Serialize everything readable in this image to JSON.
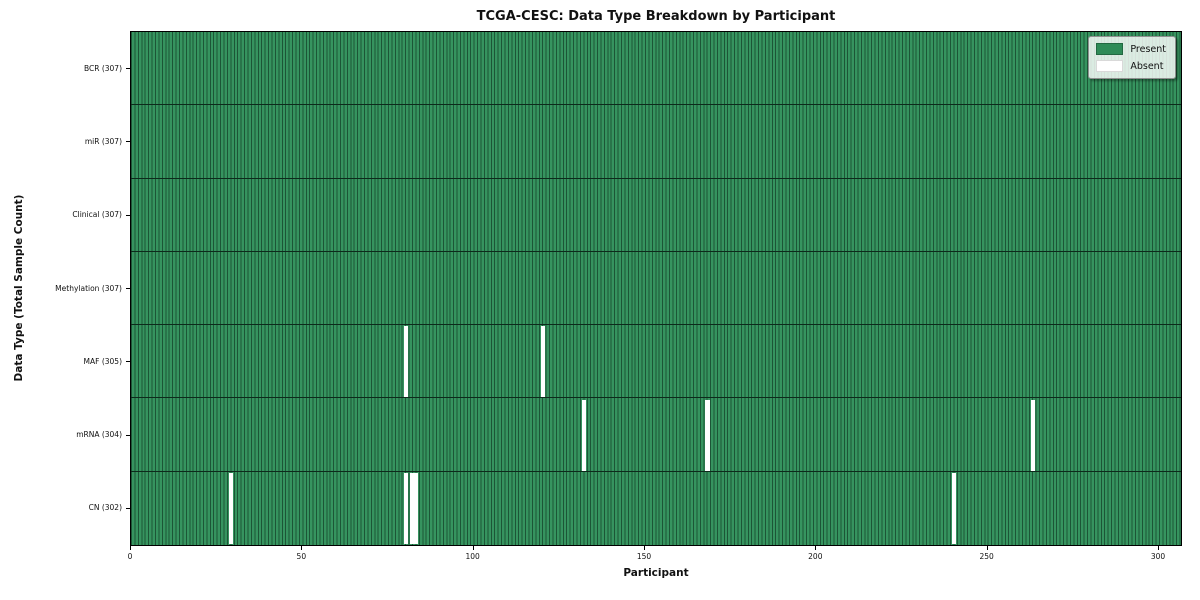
{
  "chart_data": {
    "type": "heatmap",
    "title": "TCGA-CESC: Data Type Breakdown by Participant",
    "xlabel": "Participant",
    "ylabel": "Data Type (Total Sample Count)",
    "x_ticks": [
      0,
      50,
      100,
      150,
      200,
      250,
      300
    ],
    "x_max": 307,
    "n_participants": 307,
    "grid": false,
    "legend_position": "upper right",
    "legend": [
      {
        "label": "Present",
        "color": "#2e8b57"
      },
      {
        "label": "Absent",
        "color": "#ffffff"
      }
    ],
    "rows": [
      {
        "label": "BCR",
        "total": 307,
        "display": "BCR (307)",
        "absent_participants": []
      },
      {
        "label": "miR",
        "total": 307,
        "display": "miR (307)",
        "absent_participants": []
      },
      {
        "label": "Clinical",
        "total": 307,
        "display": "Clinical (307)",
        "absent_participants": []
      },
      {
        "label": "Methylation",
        "total": 307,
        "display": "Methylation (307)",
        "absent_participants": []
      },
      {
        "label": "MAF",
        "total": 305,
        "display": "MAF (305)",
        "absent_participants": [
          80,
          120
        ]
      },
      {
        "label": "mRNA",
        "total": 304,
        "display": "mRNA (304)",
        "absent_participants": [
          132,
          168,
          263
        ]
      },
      {
        "label": "CN",
        "total": 302,
        "display": "CN (302)",
        "absent_participants": [
          29,
          80,
          82,
          83,
          240
        ]
      }
    ],
    "colors": {
      "present": "#2e8b57",
      "present_fill": "#36945f",
      "bar_edge": "#1c5636",
      "absent": "#ffffff",
      "row_separator": "#0d2a1b"
    }
  }
}
